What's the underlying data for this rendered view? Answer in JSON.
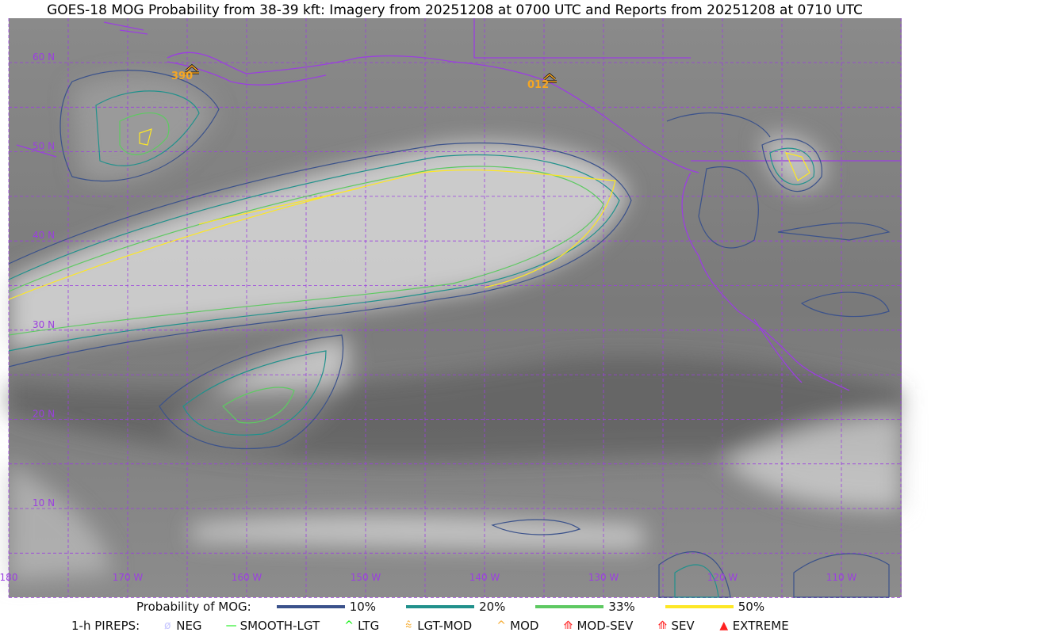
{
  "title": "GOES-18 MOG Probability from 38-39 kft: Imagery from 20251208 at 0700 UTC and Reports from 20251208 at 0710 UTC",
  "map": {
    "lat_labels": [
      "60 N",
      "50 N",
      "40 N",
      "30 N",
      "20 N",
      "10 N"
    ],
    "lon_labels": [
      "180",
      "170 W",
      "160 W",
      "150 W",
      "140 W",
      "130 W",
      "120 W",
      "110 W"
    ],
    "reports": [
      {
        "type": "MOD",
        "label": "390",
        "color": "#f5a623"
      },
      {
        "type": "MOD",
        "label": "012",
        "color": "#f5a623"
      }
    ],
    "grid_color": "#9b3fe0",
    "coast_color": "#9b3fe0"
  },
  "legend": {
    "mog_title": "Probability of MOG:",
    "mog_levels": [
      {
        "label": "10%",
        "color": "#3b528b"
      },
      {
        "label": "20%",
        "color": "#21918c"
      },
      {
        "label": "33%",
        "color": "#5ec962"
      },
      {
        "label": "50%",
        "color": "#fde725"
      }
    ],
    "pirep_title": "1-h PIREPS:",
    "pireps": [
      {
        "label": "NEG",
        "icon": "null-icon",
        "symbol": "ø",
        "color": "#c8c8ff"
      },
      {
        "label": "SMOOTH-LGT",
        "icon": "dash-icon",
        "symbol": "—",
        "color": "#00ee00"
      },
      {
        "label": "LTG",
        "icon": "caret-icon",
        "symbol": "^",
        "color": "#00ee00"
      },
      {
        "label": "LGT-MOD",
        "icon": "caret-underline-icon",
        "symbol": "⩯",
        "color": "#f5a623"
      },
      {
        "label": "MOD",
        "icon": "caret-icon",
        "symbol": "^",
        "color": "#f5a623"
      },
      {
        "label": "MOD-SEV",
        "icon": "double-caret-underline-icon",
        "symbol": "⟰",
        "color": "#ff2020"
      },
      {
        "label": "SEV",
        "icon": "double-caret-icon",
        "symbol": "⟰",
        "color": "#ff2020"
      },
      {
        "label": "EXTREME",
        "icon": "filled-triangle-icon",
        "symbol": "▲",
        "color": "#ff2020"
      }
    ]
  }
}
